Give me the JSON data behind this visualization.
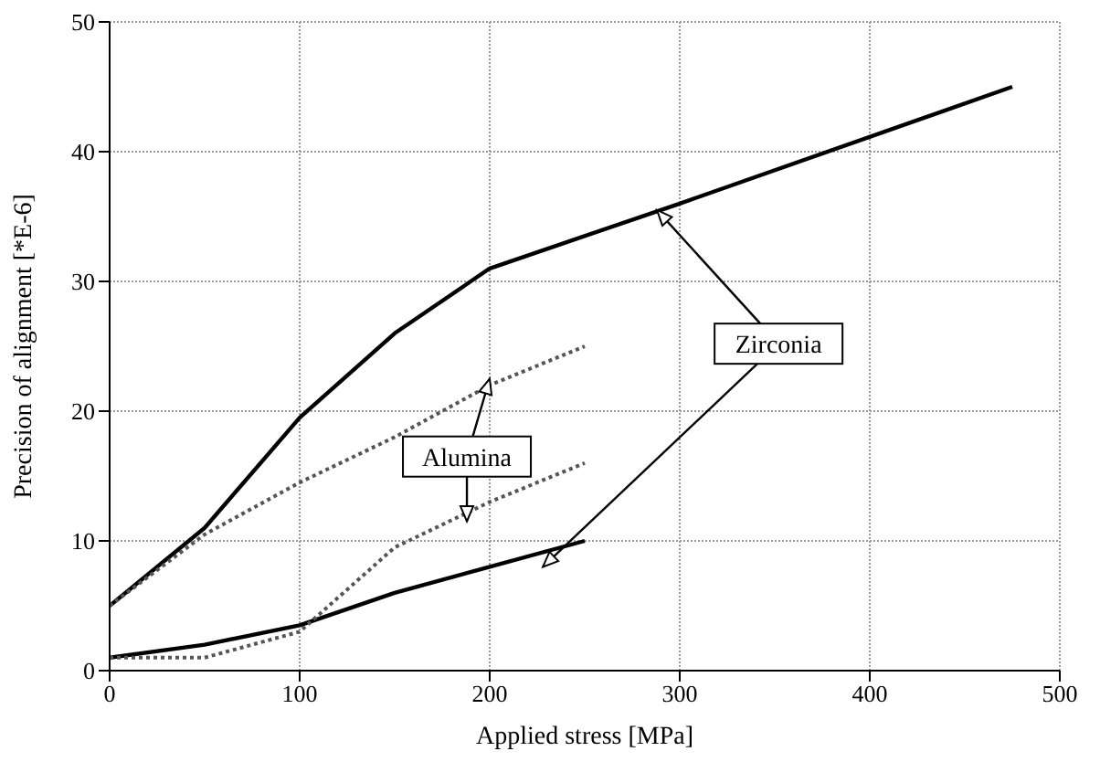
{
  "chart_data": {
    "type": "line",
    "xlabel": "Applied stress [MPa]",
    "ylabel": "Precision of alignment [*E-6]",
    "xlim": [
      0,
      500
    ],
    "xticks": [
      0,
      100,
      200,
      300,
      400,
      500
    ],
    "ylim": [
      0,
      50
    ],
    "yticks": [
      0,
      10,
      20,
      30,
      40,
      50
    ],
    "grid": true,
    "marker": "none",
    "series": [
      {
        "color": "#000000",
        "line_style": "solid",
        "x": [
          0,
          50,
          100,
          150,
          200,
          300,
          475
        ],
        "values": [
          5,
          11,
          19.5,
          26,
          31,
          36,
          45
        ]
      },
      {
        "color": "#000000",
        "line_style": "solid",
        "x": [
          0,
          50,
          100,
          150,
          200,
          250
        ],
        "values": [
          1,
          2,
          3.5,
          6,
          8,
          10
        ]
      },
      {
        "color": "#555555",
        "line_style": "dotted",
        "x": [
          0,
          50,
          100,
          150,
          200,
          250
        ],
        "values": [
          5,
          10.5,
          14.5,
          18,
          22,
          25
        ]
      },
      {
        "color": "#555555",
        "line_style": "dotted",
        "x": [
          0,
          50,
          100,
          150,
          200,
          250
        ],
        "values": [
          1,
          1,
          3,
          9.5,
          13,
          16
        ]
      }
    ],
    "annotations": [
      {
        "text": "Zirconia",
        "x": 288,
        "y": 35.5
      },
      {
        "text": "Alumina",
        "x": 200,
        "y": 22.5
      }
    ]
  }
}
